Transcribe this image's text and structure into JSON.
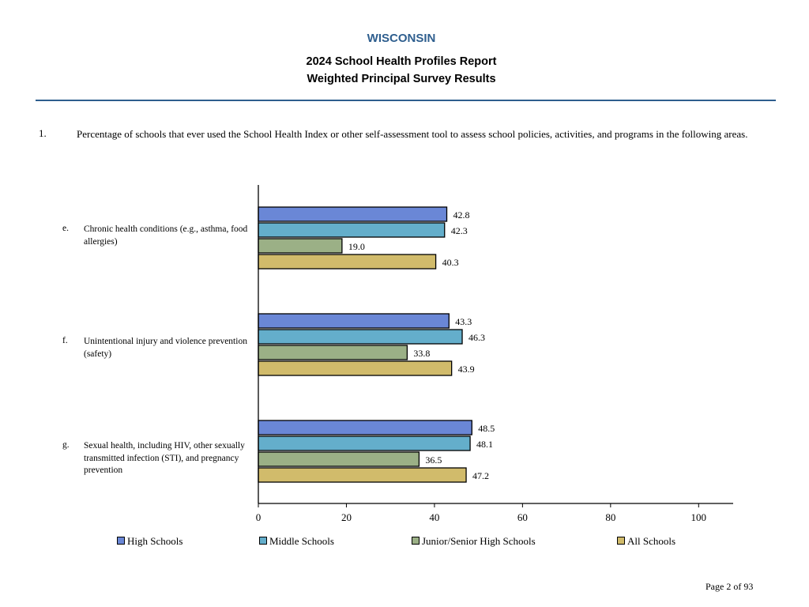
{
  "header": {
    "state": "WISCONSIN",
    "report_title": "2024 School Health Profiles Report",
    "report_subtitle": "Weighted Principal Survey Results"
  },
  "question": {
    "number": "1.",
    "text": "Percentage of schools that ever used the School Health Index or other self-assessment tool to assess school policies, activities, and programs in the following areas."
  },
  "chart_data": {
    "type": "bar",
    "orientation": "horizontal",
    "categories": [
      {
        "letter": "e.",
        "label": "Chronic health conditions (e.g., asthma, food allergies)"
      },
      {
        "letter": "f.",
        "label": "Unintentional injury and violence prevention (safety)"
      },
      {
        "letter": "g.",
        "label": "Sexual health, including HIV, other sexually transmitted infection (STI), and pregnancy prevention"
      }
    ],
    "series": [
      {
        "name": "High Schools",
        "color": "#6a87d6",
        "values": [
          42.8,
          43.3,
          48.5
        ],
        "labels": [
          "42.8",
          "43.3",
          "48.5"
        ]
      },
      {
        "name": "Middle Schools",
        "color": "#64aecb",
        "values": [
          42.3,
          46.3,
          48.1
        ],
        "labels": [
          "42.3",
          "46.3",
          "48.1"
        ]
      },
      {
        "name": "Junior/Senior High Schools",
        "color": "#9bb086",
        "values": [
          19.0,
          33.8,
          36.5
        ],
        "labels": [
          "19.0",
          "33.8",
          "36.5"
        ]
      },
      {
        "name": "All Schools",
        "color": "#d1bb6b",
        "values": [
          40.3,
          43.9,
          47.2
        ],
        "labels": [
          "40.3",
          "43.9",
          "47.2"
        ]
      }
    ],
    "xlim": [
      0,
      108
    ],
    "ticks": [
      "0",
      "20",
      "40",
      "60",
      "80",
      "100"
    ],
    "grid": false,
    "legend_position": "bottom"
  },
  "footer": {
    "page": "Page 2 of 93"
  }
}
